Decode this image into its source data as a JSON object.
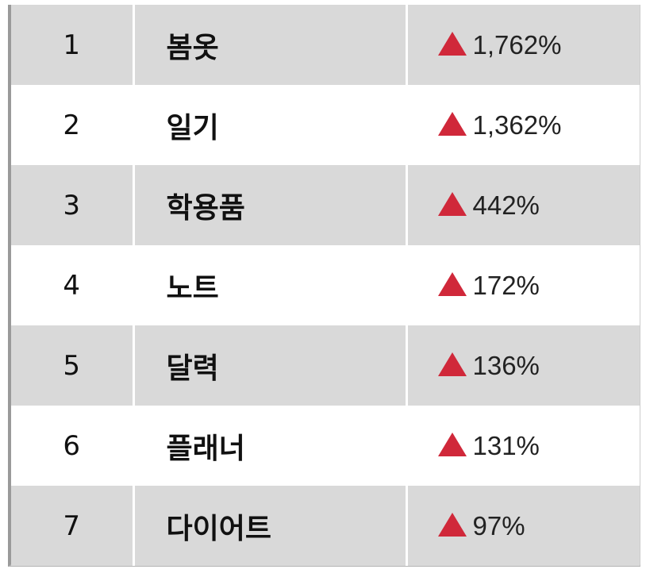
{
  "colors": {
    "row_shade": "#d9d9d9",
    "up_arrow": "#d0283a"
  },
  "rows": [
    {
      "rank": "1",
      "keyword": "봄옷",
      "change": "1,762%",
      "icon": "triangle-up-icon"
    },
    {
      "rank": "2",
      "keyword": "일기",
      "change": "1,362%",
      "icon": "triangle-up-icon"
    },
    {
      "rank": "3",
      "keyword": "학용품",
      "change": "442%",
      "icon": "triangle-up-icon"
    },
    {
      "rank": "4",
      "keyword": "노트",
      "change": "172%",
      "icon": "triangle-up-icon"
    },
    {
      "rank": "5",
      "keyword": "달력",
      "change": "136%",
      "icon": "triangle-up-icon"
    },
    {
      "rank": "6",
      "keyword": "플래너",
      "change": "131%",
      "icon": "triangle-up-icon"
    },
    {
      "rank": "7",
      "keyword": "다이어트",
      "change": "97%",
      "icon": "triangle-up-icon"
    }
  ]
}
